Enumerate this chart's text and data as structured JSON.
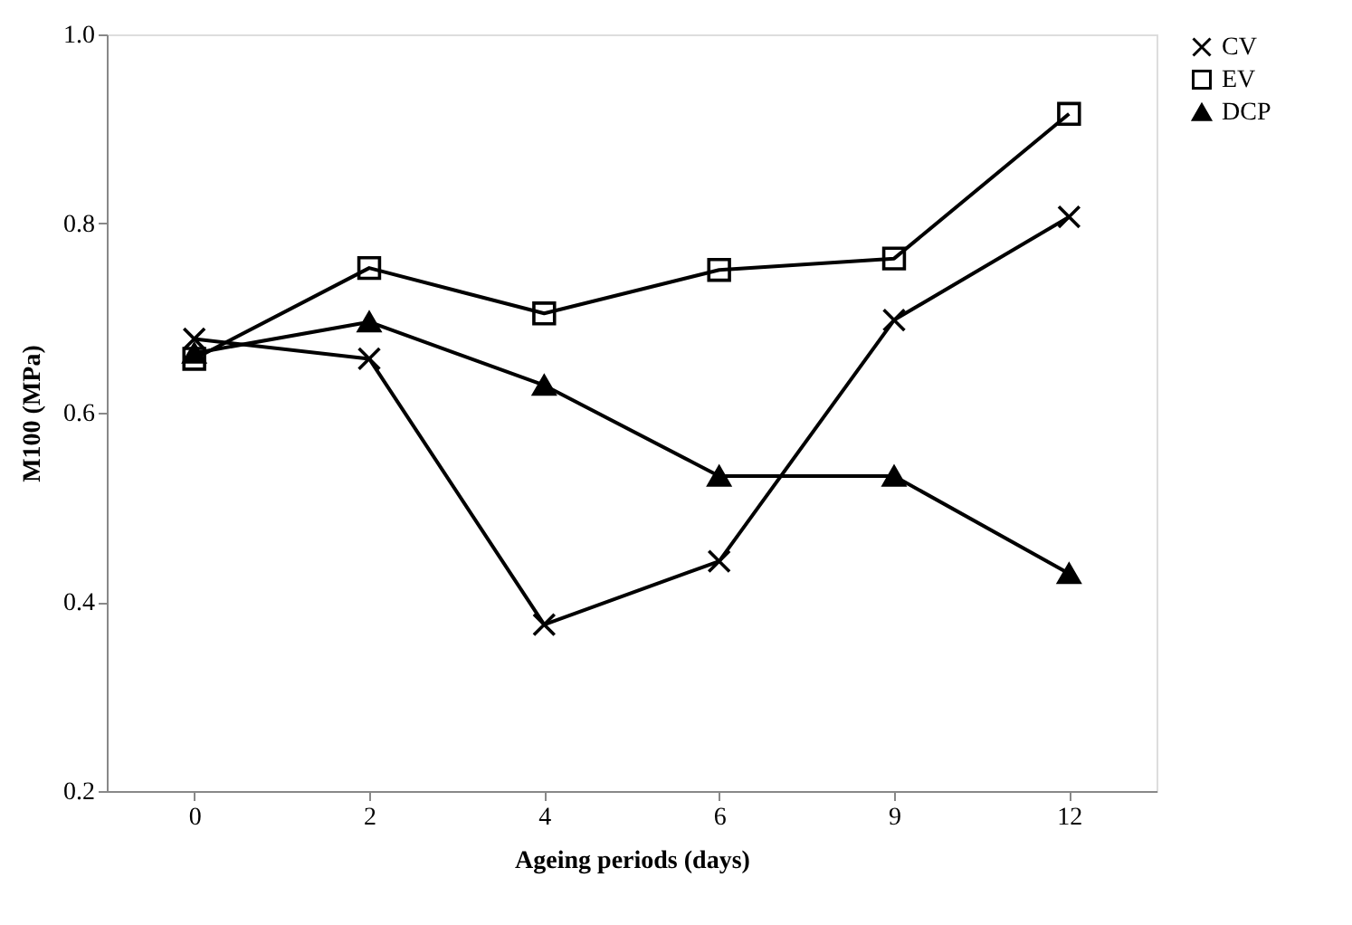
{
  "chart_data": {
    "type": "line",
    "xlabel": "Ageing periods (days)",
    "ylabel": "M100 (MPa)",
    "categories": [
      "0",
      "2",
      "4",
      "6",
      "9",
      "12"
    ],
    "series": [
      {
        "name": "CV",
        "color": "#000000",
        "marker": "cross",
        "values": [
          0.678,
          0.657,
          0.376,
          0.443,
          0.698,
          0.807
        ]
      },
      {
        "name": "EV",
        "color": "#000000",
        "marker": "square",
        "values": [
          0.657,
          0.753,
          0.705,
          0.751,
          0.763,
          0.916
        ]
      },
      {
        "name": "DCP",
        "color": "#000000",
        "marker": "triangle",
        "values": [
          0.663,
          0.696,
          0.629,
          0.533,
          0.533,
          0.43
        ]
      }
    ],
    "ylim": [
      0.2,
      1.0
    ],
    "yticks": [
      {
        "value": 0.2,
        "label": "0.2"
      },
      {
        "value": 0.4,
        "label": "0.4"
      },
      {
        "value": 0.6,
        "label": "0.6"
      },
      {
        "value": 0.8,
        "label": "0.8"
      },
      {
        "value": 1.0,
        "label": "1.0"
      }
    ],
    "grid": false,
    "legend": "right",
    "line_style": "solid"
  }
}
